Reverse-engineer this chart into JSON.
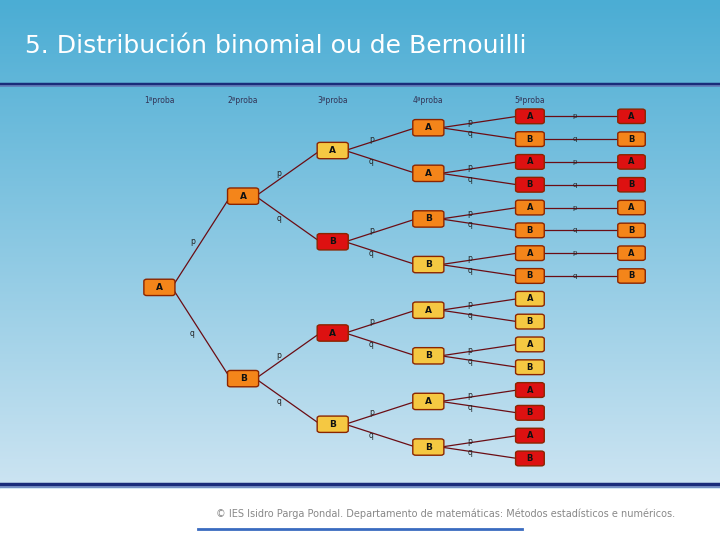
{
  "title": "5. Distribución binomial ou de Bernouilli",
  "footer": "IES Isidro Parga Pondal. Departamento de matemáticas: Métodos estadísticos e numéricos.",
  "bg_top_color": "#4badd4",
  "bg_bottom_color": "#daeaf5",
  "title_color": "#ffffff",
  "title_fontsize": 18,
  "sep_dark": "#1a2c7a",
  "sep_light": "#6680bb",
  "column_labels": [
    "1ªproba",
    "2ªproba",
    "3ªproba",
    "4ªproba",
    "5ªproba"
  ],
  "line_color": "#6b0d14",
  "box_color_red": "#dd1111",
  "box_color_orange": "#f4851a",
  "box_color_yellow": "#f5c842",
  "footer_color": "#888888",
  "footer_fontsize": 7.0
}
